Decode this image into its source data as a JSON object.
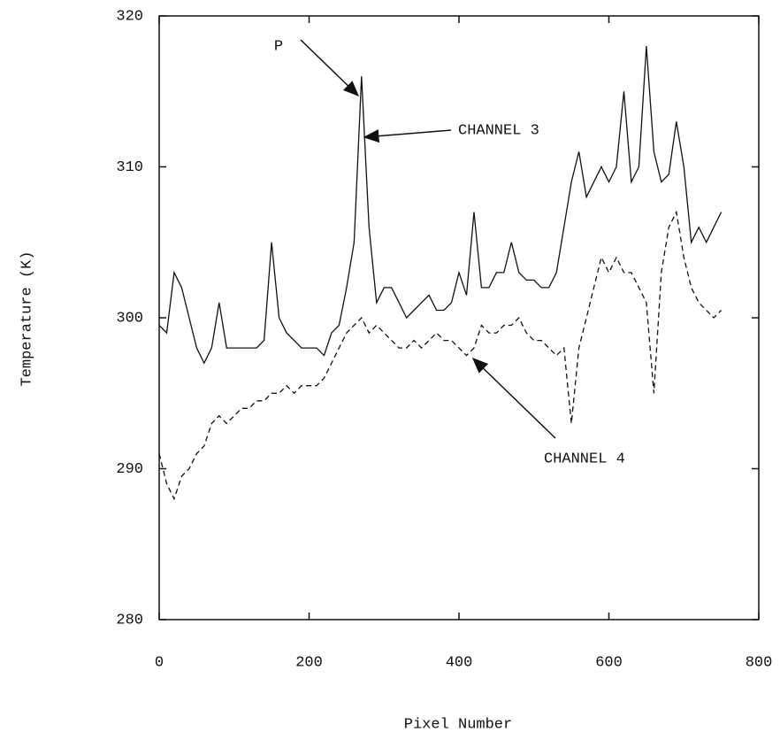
{
  "chart_data": {
    "type": "line",
    "xlabel": "Pixel Number",
    "ylabel": "Temperature (K)",
    "annotations": [
      "P"
    ],
    "x": [
      0,
      10,
      20,
      30,
      40,
      50,
      60,
      70,
      80,
      90,
      100,
      110,
      120,
      130,
      140,
      150,
      160,
      170,
      180,
      190,
      200,
      210,
      220,
      230,
      240,
      250,
      260,
      270,
      280,
      290,
      300,
      310,
      320,
      330,
      340,
      350,
      360,
      370,
      380,
      390,
      400,
      410,
      420,
      430,
      440,
      450,
      460,
      470,
      480,
      490,
      500,
      510,
      520,
      530,
      540,
      550,
      560,
      570,
      580,
      590,
      600,
      610,
      620,
      630,
      640,
      650,
      660,
      670,
      680,
      690,
      700,
      710,
      720,
      730,
      740,
      750
    ],
    "series": [
      {
        "name": "CHANNEL 3",
        "color": "#111111",
        "style": "solid",
        "values": [
          299.5,
          299,
          303,
          302,
          300,
          298,
          297,
          298,
          301,
          298,
          298,
          298,
          298,
          298,
          298.5,
          305,
          300,
          299,
          298.5,
          298,
          298,
          298,
          297.5,
          299,
          299.5,
          302,
          305,
          316,
          306,
          301,
          302,
          302,
          301,
          300,
          300.5,
          301,
          301.5,
          300.5,
          300.5,
          301,
          303,
          301.5,
          307,
          302,
          302,
          303,
          303,
          305,
          303,
          302.5,
          302.5,
          302,
          302,
          303,
          306,
          309,
          311,
          308,
          309,
          310,
          309,
          310,
          315,
          309,
          310,
          318,
          311,
          309,
          309.5,
          313,
          310,
          305,
          306,
          305,
          306,
          307
        ]
      },
      {
        "name": "CHANNEL 4",
        "color": "#111111",
        "style": "dashed",
        "values": [
          291,
          289,
          288,
          289.5,
          290,
          291,
          291.5,
          293,
          293.5,
          293,
          293.5,
          294,
          294,
          294.5,
          294.5,
          295,
          295,
          295.5,
          295,
          295.5,
          295.5,
          295.5,
          296,
          297,
          298,
          299,
          299.5,
          300,
          299,
          299.5,
          299,
          298.5,
          298,
          298,
          298.5,
          298,
          298.5,
          299,
          298.5,
          298.5,
          298,
          297.5,
          298,
          299.5,
          299,
          299,
          299.5,
          299.5,
          300,
          299,
          298.5,
          298.5,
          298,
          297.5,
          298,
          293,
          298,
          300,
          302,
          304,
          303,
          304,
          303,
          303,
          302,
          301,
          295,
          303,
          306,
          307,
          304,
          302,
          301,
          300.5,
          300,
          300.5
        ]
      }
    ],
    "xlim": [
      0,
      800
    ],
    "xticks": [
      0,
      200,
      400,
      600,
      800
    ],
    "ylim": [
      280,
      320
    ],
    "yticks": [
      280,
      290,
      300,
      310,
      320
    ]
  }
}
